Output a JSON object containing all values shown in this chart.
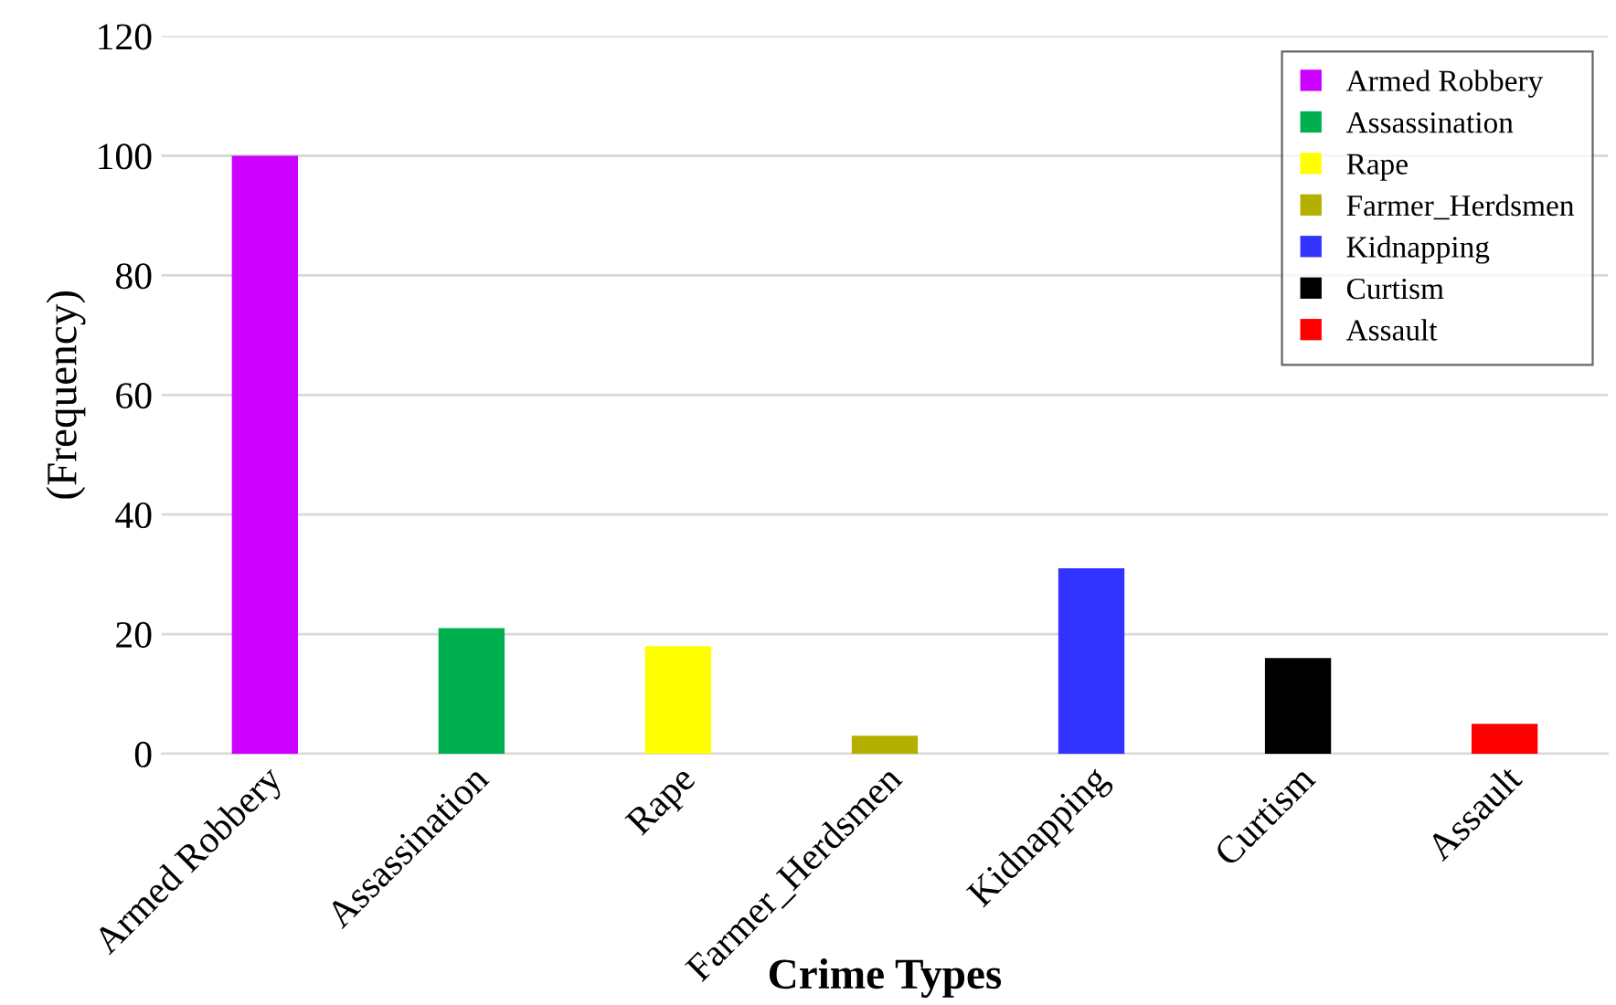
{
  "chart_data": {
    "type": "bar",
    "xlabel": "Crime Types",
    "ylabel": "(Frequency)",
    "categories": [
      "Armed Robbery",
      "Assassination",
      "Rape",
      "Farmer_Herdsmen",
      "Kidnapping",
      "Curtism",
      "Assault"
    ],
    "series": [
      {
        "name": "Armed Robbery",
        "color": "#cc00ff",
        "values": [
          100,
          null,
          null,
          null,
          null,
          null,
          null
        ]
      },
      {
        "name": "Assassination",
        "color": "#00b050",
        "values": [
          null,
          21,
          null,
          null,
          null,
          null,
          null
        ]
      },
      {
        "name": "Rape",
        "color": "#ffff00",
        "values": [
          null,
          null,
          18,
          null,
          null,
          null,
          null
        ]
      },
      {
        "name": "Farmer_Herdsmen",
        "color": "#b5b000",
        "values": [
          null,
          null,
          null,
          3,
          null,
          null,
          null
        ]
      },
      {
        "name": "Kidnapping",
        "color": "#3333ff",
        "values": [
          null,
          null,
          null,
          null,
          31,
          null,
          null
        ]
      },
      {
        "name": "Curtism",
        "color": "#000000",
        "values": [
          null,
          null,
          null,
          null,
          null,
          16,
          null
        ]
      },
      {
        "name": "Assault",
        "color": "#ff0000",
        "values": [
          null,
          null,
          null,
          null,
          null,
          null,
          5
        ]
      }
    ],
    "ylim": [
      0,
      120
    ],
    "yticks": [
      0,
      20,
      40,
      60,
      80,
      100,
      120
    ],
    "grid": "y",
    "legend": "top right"
  }
}
